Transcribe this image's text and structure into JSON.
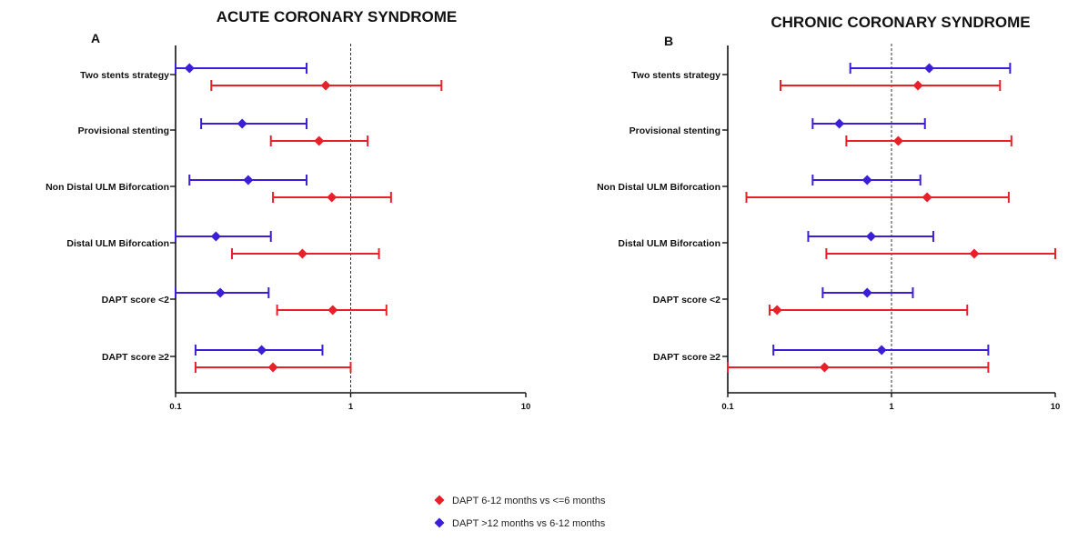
{
  "chart_data": [
    {
      "type": "forest",
      "panel_label": "A",
      "title": "ACUTE CORONARY SYNDROME",
      "x_scale": "log",
      "xlim": [
        0.1,
        10
      ],
      "x_ticks": [
        "0.1",
        "1",
        "10"
      ],
      "reference_line": 1,
      "categories": [
        "Two stents strategy",
        "Provisional stenting",
        "Non Distal ULM Biforcation",
        "Distal ULM Biforcation",
        "DAPT score <2",
        "DAPT score ≥2"
      ],
      "series": [
        {
          "name": "DAPT 6-12 months  vs <=6 months",
          "color": "#e8202a",
          "points": [
            {
              "est": 0.72,
              "lo": 0.16,
              "hi": 3.3
            },
            {
              "est": 0.66,
              "lo": 0.35,
              "hi": 1.25
            },
            {
              "est": 0.78,
              "lo": 0.36,
              "hi": 1.7
            },
            {
              "est": 0.53,
              "lo": 0.21,
              "hi": 1.45
            },
            {
              "est": 0.79,
              "lo": 0.38,
              "hi": 1.6
            },
            {
              "est": 0.36,
              "lo": 0.13,
              "hi": 1.0
            }
          ]
        },
        {
          "name": "DAPT >12 months vs 6-12 months",
          "color": "#3a1fd6",
          "points": [
            {
              "est": 0.12,
              "lo": 0.1,
              "hi": 0.56
            },
            {
              "est": 0.24,
              "lo": 0.14,
              "hi": 0.56
            },
            {
              "est": 0.26,
              "lo": 0.12,
              "hi": 0.56
            },
            {
              "est": 0.17,
              "lo": 0.1,
              "hi": 0.35
            },
            {
              "est": 0.18,
              "lo": 0.1,
              "hi": 0.34
            },
            {
              "est": 0.31,
              "lo": 0.13,
              "hi": 0.69
            }
          ]
        }
      ]
    },
    {
      "type": "forest",
      "panel_label": "B",
      "title": "CHRONIC CORONARY SYNDROME",
      "x_scale": "log",
      "xlim": [
        0.1,
        10
      ],
      "x_ticks": [
        "0.1",
        "1",
        "10"
      ],
      "reference_line": 1,
      "categories": [
        "Two stents strategy",
        "Provisional stenting",
        "Non Distal ULM Biforcation",
        "Distal ULM Biforcation",
        "DAPT score <2",
        "DAPT score ≥2"
      ],
      "series": [
        {
          "name": "DAPT 6-12 months  vs <=6 months",
          "color": "#e8202a",
          "points": [
            {
              "est": 1.45,
              "lo": 0.21,
              "hi": 4.6
            },
            {
              "est": 1.1,
              "lo": 0.53,
              "hi": 5.4
            },
            {
              "est": 1.65,
              "lo": 0.13,
              "hi": 5.2
            },
            {
              "est": 3.2,
              "lo": 0.4,
              "hi": 10
            },
            {
              "est": 0.2,
              "lo": 0.18,
              "hi": 2.9
            },
            {
              "est": 0.39,
              "lo": 0.1,
              "hi": 3.9
            }
          ]
        },
        {
          "name": "DAPT >12 months vs 6-12 months",
          "color": "#3a1fd6",
          "points": [
            {
              "est": 1.7,
              "lo": 0.56,
              "hi": 5.3
            },
            {
              "est": 0.48,
              "lo": 0.33,
              "hi": 1.6
            },
            {
              "est": 0.71,
              "lo": 0.33,
              "hi": 1.5
            },
            {
              "est": 0.75,
              "lo": 0.31,
              "hi": 1.8
            },
            {
              "est": 0.71,
              "lo": 0.38,
              "hi": 1.35
            },
            {
              "est": 0.87,
              "lo": 0.19,
              "hi": 3.9
            }
          ]
        }
      ]
    }
  ],
  "legend": [
    {
      "label": "DAPT 6-12 months  vs <=6 months",
      "color": "#e8202a",
      "marker": "diamond"
    },
    {
      "label": "DAPT >12 months vs 6-12 months",
      "color": "#3a1fd6",
      "marker": "diamond"
    }
  ]
}
